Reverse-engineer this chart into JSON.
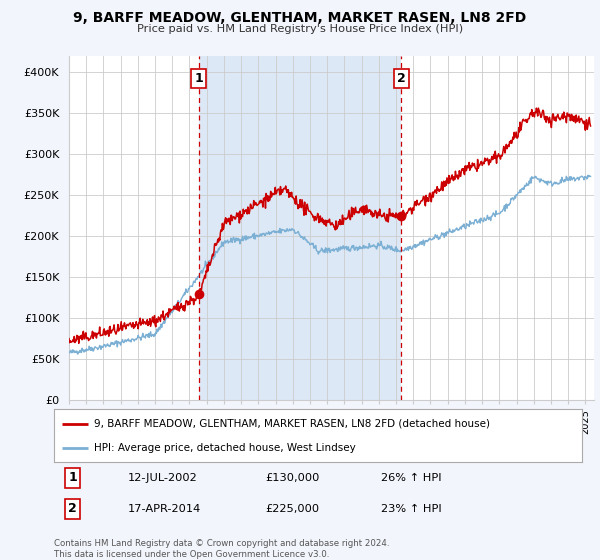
{
  "title": "9, BARFF MEADOW, GLENTHAM, MARKET RASEN, LN8 2FD",
  "subtitle": "Price paid vs. HM Land Registry's House Price Index (HPI)",
  "ylabel_ticks": [
    "£0",
    "£50K",
    "£100K",
    "£150K",
    "£200K",
    "£250K",
    "£300K",
    "£350K",
    "£400K"
  ],
  "ytick_vals": [
    0,
    50000,
    100000,
    150000,
    200000,
    250000,
    300000,
    350000,
    400000
  ],
  "ylim": [
    0,
    420000
  ],
  "xlim_start": 1995.0,
  "xlim_end": 2025.5,
  "background_color": "#f2f5fb",
  "plot_bg_color": "#ffffff",
  "shaded_bg_color": "#dce8f5",
  "red_color": "#cc0000",
  "blue_color": "#7bafd4",
  "marker1_year": 2002.53,
  "marker1_value": 130000,
  "marker2_year": 2014.29,
  "marker2_value": 225000,
  "legend_label_red": "9, BARFF MEADOW, GLENTHAM, MARKET RASEN, LN8 2FD (detached house)",
  "legend_label_blue": "HPI: Average price, detached house, West Lindsey",
  "annotation1_num": "1",
  "annotation1_date": "12-JUL-2002",
  "annotation1_price": "£130,000",
  "annotation1_hpi": "26% ↑ HPI",
  "annotation2_num": "2",
  "annotation2_date": "17-APR-2014",
  "annotation2_price": "£225,000",
  "annotation2_hpi": "23% ↑ HPI",
  "footer": "Contains HM Land Registry data © Crown copyright and database right 2024.\nThis data is licensed under the Open Government Licence v3.0."
}
